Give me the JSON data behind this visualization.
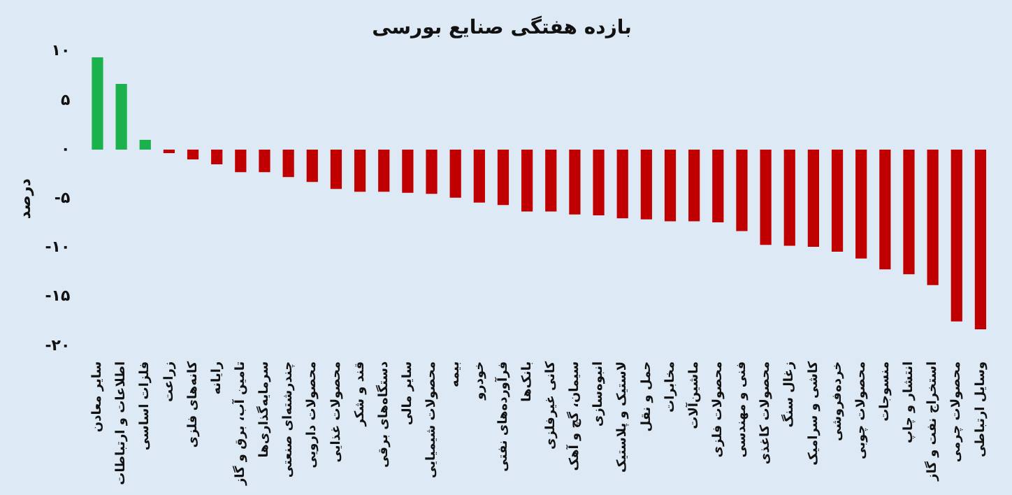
{
  "chart_data": {
    "type": "bar",
    "title": "بازده هفتگی صنایع بورسی",
    "ylabel": "درصد",
    "categories": [
      "سایر معادن",
      "اطلاعات و ارتباطات",
      "فلزات اساسی",
      "زراعت",
      "کانه‌های فلزی",
      "رایانه",
      "تامین آب، برق و گاز",
      "سرمایه‌گذاری‌ها",
      "چندرشته‌ای صنعتی",
      "محصولات دارویی",
      "محصولات غذایی",
      "قند و شکر",
      "دستگاه‌های برقی",
      "سایر مالی",
      "محصولات شیمیایی",
      "بیمه",
      "خودرو",
      "فرآورده‌های نفتی",
      "بانک‌ها",
      "کانی غیرفلزی",
      "سیمان، گچ و آهک",
      "انبوه‌سازی",
      "لاستیک و پلاستیک",
      "حمل و نقل",
      "مخابرات",
      "ماشین‌آلات",
      "محصولات فلزی",
      "فنی و مهندسی",
      "محصولات کاغذی",
      "زغال سنگ",
      "کاشی و سرامیک",
      "خرده‌فروشی",
      "محصولات چوبی",
      "منسوجات",
      "انتشار و چاپ",
      "استخراج نفت و گاز",
      "محصولات چرمی",
      "وسایل ارتباطی"
    ],
    "values": [
      9.4,
      6.7,
      1.0,
      -0.35,
      -1.0,
      -1.5,
      -2.3,
      -2.3,
      -2.8,
      -3.3,
      -4.0,
      -4.3,
      -4.3,
      -4.4,
      -4.5,
      -4.9,
      -5.4,
      -5.65,
      -6.3,
      -6.3,
      -6.6,
      -6.7,
      -7.0,
      -7.1,
      -7.3,
      -7.3,
      -7.4,
      -8.3,
      -9.7,
      -9.8,
      -9.9,
      -10.4,
      -11.1,
      -12.2,
      -12.7,
      -13.8,
      -17.5,
      -18.3
    ],
    "colors": [
      "#1bb14c",
      "#1bb14c",
      "#1bb14c",
      "#c00000",
      "#c00000",
      "#c00000",
      "#c00000",
      "#c00000",
      "#c00000",
      "#c00000",
      "#c00000",
      "#c00000",
      "#c00000",
      "#c00000",
      "#c00000",
      "#c00000",
      "#c00000",
      "#c00000",
      "#c00000",
      "#c00000",
      "#c00000",
      "#c00000",
      "#c00000",
      "#c00000",
      "#c00000",
      "#c00000",
      "#c00000",
      "#c00000",
      "#c00000",
      "#c00000",
      "#c00000",
      "#c00000",
      "#c00000",
      "#c00000",
      "#c00000",
      "#c00000",
      "#c00000",
      "#c00000"
    ],
    "ylim": [
      -20,
      10
    ],
    "yticks": [
      {
        "value": 10,
        "label": "۱۰"
      },
      {
        "value": 5,
        "label": "۵"
      },
      {
        "value": 0,
        "label": "۰"
      },
      {
        "value": -5,
        "label": "-۵"
      },
      {
        "value": -10,
        "label": "-۱۰"
      },
      {
        "value": -15,
        "label": "-۱۵"
      },
      {
        "value": -20,
        "label": "-۲۰"
      }
    ],
    "grid": false,
    "legend": false
  }
}
